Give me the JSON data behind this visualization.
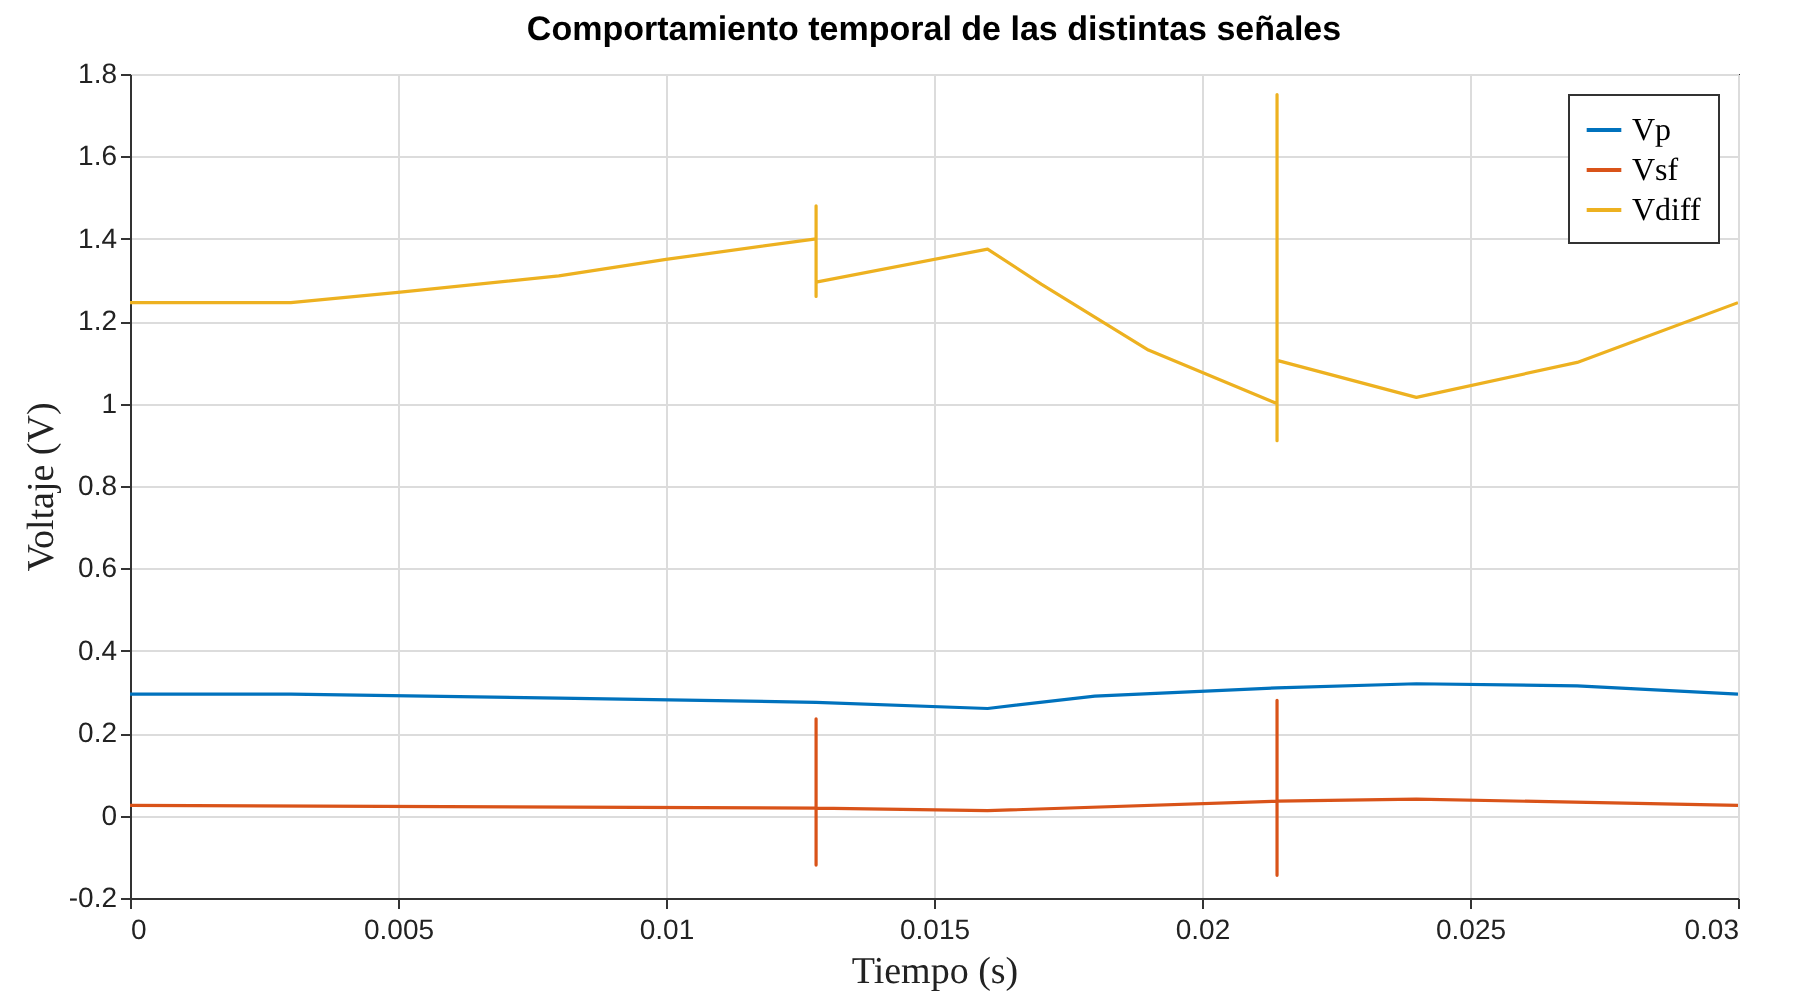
{
  "chart_data": {
    "type": "line",
    "title": "Comportamiento temporal de las distintas señales",
    "xlabel": "Tiempo (s)",
    "ylabel": "Voltaje (V)",
    "xlim": [
      0,
      0.03
    ],
    "xticks": [
      0,
      0.005,
      0.01,
      0.015,
      0.02,
      0.025,
      0.03
    ],
    "ylim": [
      -0.2,
      1.8
    ],
    "yticks": [
      -0.2,
      0,
      0.2,
      0.4,
      0.6,
      0.8,
      1,
      1.2,
      1.4,
      1.6,
      1.8
    ],
    "grid": true,
    "legend": "top right",
    "line_style": "solid",
    "marker": "none",
    "series": [
      {
        "name": "Vp",
        "color": "#0072bd",
        "x": [
          0,
          0.003,
          0.008,
          0.0128,
          0.016,
          0.018,
          0.0214,
          0.024,
          0.027,
          0.03
        ],
        "values": [
          0.295,
          0.295,
          0.285,
          0.275,
          0.26,
          0.29,
          0.31,
          0.32,
          0.315,
          0.295
        ]
      },
      {
        "name": "Vsf",
        "color": "#d95319",
        "x": [
          0,
          0.0128,
          0.0128,
          0.0128,
          0.0128,
          0.016,
          0.0214,
          0.0214,
          0.0214,
          0.0214,
          0.024,
          0.03
        ],
        "values": [
          0.025,
          0.018,
          0.235,
          -0.12,
          0.018,
          0.012,
          0.035,
          0.28,
          -0.145,
          0.035,
          0.04,
          0.025
        ]
      },
      {
        "name": "Vdiff",
        "color": "#edb120",
        "x": [
          0,
          0.003,
          0.005,
          0.008,
          0.01,
          0.0128,
          0.0128,
          0.0128,
          0.0128,
          0.016,
          0.017,
          0.019,
          0.0214,
          0.0214,
          0.0214,
          0.0214,
          0.024,
          0.027,
          0.03
        ],
        "values": [
          1.245,
          1.245,
          1.27,
          1.31,
          1.35,
          1.4,
          1.48,
          1.26,
          1.295,
          1.375,
          1.29,
          1.13,
          1.0,
          0.91,
          1.75,
          1.105,
          1.015,
          1.1,
          1.245
        ]
      }
    ]
  }
}
